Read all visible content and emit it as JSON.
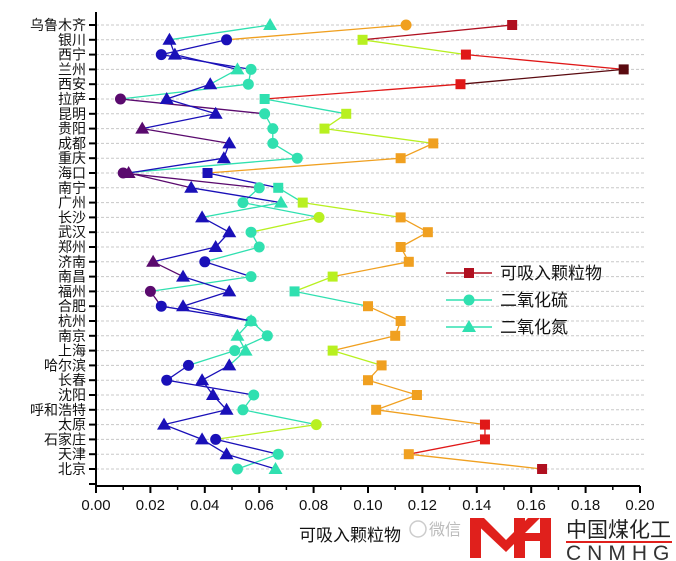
{
  "chart_data": {
    "type": "line",
    "orientation": "horizontal",
    "title": "",
    "xlabel": "可吸入颗粒物",
    "ylabel": "",
    "xlim": [
      0,
      0.2
    ],
    "xticks": [
      "0.00",
      "0.02",
      "0.04",
      "0.06",
      "0.08",
      "0.10",
      "0.12",
      "0.14",
      "0.16",
      "0.18",
      "0.20"
    ],
    "grid": true,
    "legend_position": "right-middle",
    "categories": [
      "乌鲁木齐",
      "银川",
      "西宁",
      "兰州",
      "西安",
      "拉萨",
      "昆明",
      "贵阳",
      "成都",
      "重庆",
      "海口",
      "南宁",
      "广州",
      "长沙",
      "武汉",
      "郑州",
      "济南",
      "南昌",
      "福州",
      "合肥",
      "杭州",
      "南京",
      "上海",
      "哈尔滨",
      "长春",
      "沈阳",
      "呼和浩特",
      "太原",
      "石家庄",
      "天津",
      "北京"
    ],
    "series": [
      {
        "name": "可吸入颗粒物",
        "marker": "square",
        "legend_color": "#b01020",
        "values": [
          0.153,
          0.098,
          0.136,
          0.194,
          0.134,
          0.062,
          0.092,
          0.084,
          0.124,
          0.112,
          0.041,
          0.067,
          0.076,
          0.112,
          0.122,
          0.112,
          0.115,
          0.087,
          0.073,
          0.1,
          0.112,
          0.11,
          0.087,
          0.105,
          0.1,
          0.118,
          0.103,
          0.143,
          0.143,
          0.115,
          0.164
        ]
      },
      {
        "name": "二氧化硫",
        "marker": "circle",
        "legend_color": "#30e0b0",
        "values": [
          0.114,
          0.048,
          0.024,
          0.057,
          0.056,
          0.009,
          0.062,
          0.065,
          0.065,
          0.074,
          0.01,
          0.06,
          0.054,
          0.082,
          0.057,
          0.06,
          0.04,
          0.057,
          0.02,
          0.024,
          0.057,
          0.063,
          0.051,
          0.034,
          0.026,
          0.058,
          0.054,
          0.081,
          0.044,
          0.067,
          0.052
        ]
      },
      {
        "name": "二氧化氮",
        "marker": "triangle",
        "legend_color": "#30e0b0",
        "values": [
          0.064,
          0.027,
          0.029,
          0.052,
          0.042,
          0.026,
          0.044,
          0.017,
          0.049,
          0.047,
          0.012,
          0.035,
          0.068,
          0.039,
          0.049,
          0.044,
          0.021,
          0.032,
          0.049,
          0.032,
          0.057,
          0.052,
          0.055,
          0.049,
          0.039,
          0.043,
          0.048,
          0.025,
          0.039,
          0.048,
          0.066
        ]
      }
    ],
    "colormap": [
      {
        "max": 0.0225,
        "color": "#5a0a6e"
      },
      {
        "max": 0.0505,
        "color": "#1a10b8"
      },
      {
        "max": 0.075,
        "color": "#30e0b0"
      },
      {
        "max": 0.099,
        "color": "#b8f020"
      },
      {
        "max": 0.125,
        "color": "#f0a020"
      },
      {
        "max": 0.148,
        "color": "#e01818"
      },
      {
        "max": 0.17,
        "color": "#b01020"
      },
      {
        "max": 1,
        "color": "#5a0a10"
      }
    ]
  },
  "watermark": {
    "text": "微信"
  },
  "logo": {
    "cn": "中国煤化工",
    "en": "CNMHG",
    "color": "#e0201c"
  }
}
